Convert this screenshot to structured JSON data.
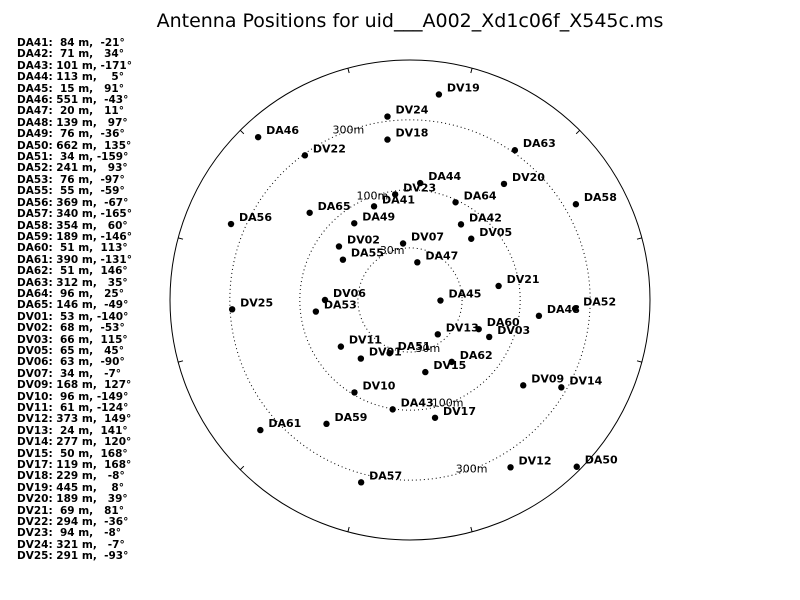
{
  "chart_data": {
    "type": "scatter",
    "title": "Antenna Positions for uid___A002_Xd1c06f_X545c.ms",
    "coordinate_system": "polar",
    "units": "m",
    "ring_labels": [
      "30m",
      "100m",
      "300m"
    ],
    "antennas": [
      {
        "name": "DA41",
        "radius_m": 84,
        "angle_deg": -21
      },
      {
        "name": "DA42",
        "radius_m": 71,
        "angle_deg": 34
      },
      {
        "name": "DA43",
        "radius_m": 101,
        "angle_deg": -171
      },
      {
        "name": "DA44",
        "radius_m": 113,
        "angle_deg": 5
      },
      {
        "name": "DA45",
        "radius_m": 15,
        "angle_deg": 91
      },
      {
        "name": "DA46",
        "radius_m": 551,
        "angle_deg": -43
      },
      {
        "name": "DA47",
        "radius_m": 20,
        "angle_deg": 11
      },
      {
        "name": "DA48",
        "radius_m": 139,
        "angle_deg": 97
      },
      {
        "name": "DA49",
        "radius_m": 76,
        "angle_deg": -36
      },
      {
        "name": "DA50",
        "radius_m": 662,
        "angle_deg": 135
      },
      {
        "name": "DA51",
        "radius_m": 34,
        "angle_deg": -159
      },
      {
        "name": "DA52",
        "radius_m": 241,
        "angle_deg": 93
      },
      {
        "name": "DA53",
        "radius_m": 76,
        "angle_deg": -97
      },
      {
        "name": "DA55",
        "radius_m": 55,
        "angle_deg": -59
      },
      {
        "name": "DA56",
        "radius_m": 369,
        "angle_deg": -67
      },
      {
        "name": "DA57",
        "radius_m": 340,
        "angle_deg": -165
      },
      {
        "name": "DA58",
        "radius_m": 354,
        "angle_deg": 60
      },
      {
        "name": "DA59",
        "radius_m": 189,
        "angle_deg": -146
      },
      {
        "name": "DA60",
        "radius_m": 51,
        "angle_deg": 113
      },
      {
        "name": "DA61",
        "radius_m": 390,
        "angle_deg": -131
      },
      {
        "name": "DA62",
        "radius_m": 51,
        "angle_deg": 146
      },
      {
        "name": "DA63",
        "radius_m": 312,
        "angle_deg": 35
      },
      {
        "name": "DA64",
        "radius_m": 96,
        "angle_deg": 25
      },
      {
        "name": "DA65",
        "radius_m": 146,
        "angle_deg": -49
      },
      {
        "name": "DV01",
        "radius_m": 53,
        "angle_deg": -140
      },
      {
        "name": "DV02",
        "radius_m": 68,
        "angle_deg": -53
      },
      {
        "name": "DV03",
        "radius_m": 66,
        "angle_deg": 115
      },
      {
        "name": "DV05",
        "radius_m": 65,
        "angle_deg": 45
      },
      {
        "name": "DV06",
        "radius_m": 63,
        "angle_deg": -90
      },
      {
        "name": "DV07",
        "radius_m": 34,
        "angle_deg": -7
      },
      {
        "name": "DV09",
        "radius_m": 168,
        "angle_deg": 127
      },
      {
        "name": "DV10",
        "radius_m": 96,
        "angle_deg": -149
      },
      {
        "name": "DV11",
        "radius_m": 61,
        "angle_deg": -124
      },
      {
        "name": "DV12",
        "radius_m": 373,
        "angle_deg": 149
      },
      {
        "name": "DV13",
        "radius_m": 24,
        "angle_deg": 141
      },
      {
        "name": "DV14",
        "radius_m": 277,
        "angle_deg": 120
      },
      {
        "name": "DV15",
        "radius_m": 50,
        "angle_deg": 168
      },
      {
        "name": "DV17",
        "radius_m": 119,
        "angle_deg": 168
      },
      {
        "name": "DV18",
        "radius_m": 229,
        "angle_deg": -8
      },
      {
        "name": "DV19",
        "radius_m": 445,
        "angle_deg": 8
      },
      {
        "name": "DV20",
        "radius_m": 189,
        "angle_deg": 39
      },
      {
        "name": "DV21",
        "radius_m": 69,
        "angle_deg": 81
      },
      {
        "name": "DV22",
        "radius_m": 294,
        "angle_deg": -36
      },
      {
        "name": "DV23",
        "radius_m": 94,
        "angle_deg": -8
      },
      {
        "name": "DV24",
        "radius_m": 321,
        "angle_deg": -7
      },
      {
        "name": "DV25",
        "radius_m": 291,
        "angle_deg": -93
      }
    ]
  }
}
